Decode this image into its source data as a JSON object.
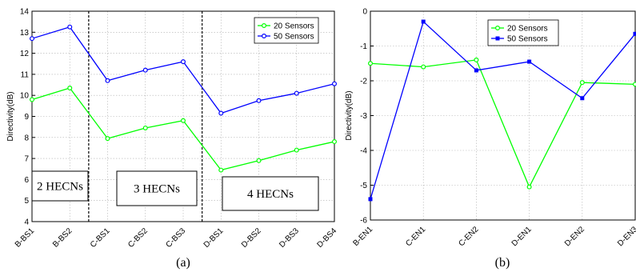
{
  "chart_data": [
    {
      "type": "line",
      "panel_label": "(a)",
      "ylabel": "Directivity(dB)",
      "xlabel": "",
      "categories": [
        "B-BS1",
        "B-BS2",
        "C-BS1",
        "C-BS2",
        "C-BS3",
        "D-BS1",
        "D-BS2",
        "D-BS3",
        "D-BS4"
      ],
      "ylim": [
        4,
        14
      ],
      "yticks": [
        4,
        5,
        6,
        7,
        8,
        9,
        10,
        11,
        12,
        13,
        14
      ],
      "grid": true,
      "legend_position": "top-right",
      "series": [
        {
          "name": "20 Sensors",
          "color": "#00ff00",
          "marker": "circle",
          "values": [
            9.8,
            10.35,
            7.95,
            8.45,
            8.8,
            6.45,
            6.9,
            7.4,
            7.8
          ]
        },
        {
          "name": "50 Sensors",
          "color": "#0000ff",
          "marker": "circle",
          "values": [
            12.7,
            13.25,
            10.7,
            11.2,
            11.6,
            9.15,
            9.75,
            10.1,
            10.55
          ]
        }
      ],
      "separators_after_category": [
        1.5,
        4.5
      ],
      "annotations": [
        "2 HECNs",
        "3 HECNs",
        "4 HECNs"
      ]
    },
    {
      "type": "line",
      "panel_label": "(b)",
      "ylabel": "Directivity(dB)",
      "xlabel": "",
      "categories": [
        "B-EN1",
        "C-EN1",
        "C-EN2",
        "D-EN1",
        "D-EN2",
        "D-EN3"
      ],
      "ylim": [
        -6,
        0
      ],
      "yticks": [
        -6,
        -5,
        -4,
        -3,
        -2,
        -1,
        0
      ],
      "grid": true,
      "legend_position": "top-center",
      "series": [
        {
          "name": "20 Sensors",
          "color": "#00ff00",
          "marker": "circle",
          "values": [
            -1.5,
            -1.6,
            -1.4,
            -5.05,
            -2.05,
            -2.1
          ]
        },
        {
          "name": "50 Sensors",
          "color": "#0000ff",
          "marker": "square",
          "values": [
            -5.4,
            -0.3,
            -1.7,
            -1.45,
            -2.5,
            -0.65
          ]
        }
      ]
    }
  ]
}
